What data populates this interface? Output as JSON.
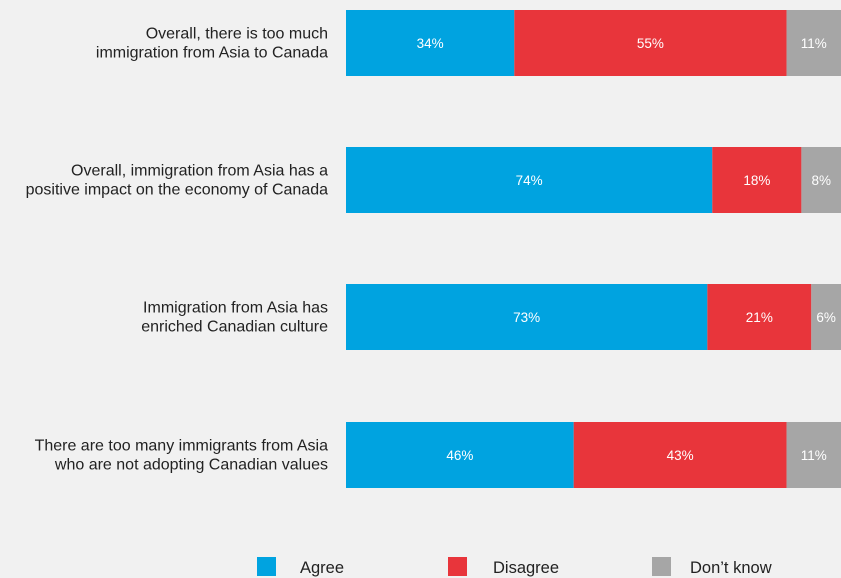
{
  "chart_data": {
    "type": "bar",
    "orientation": "horizontal",
    "stacked": true,
    "categories": [
      [
        "Overall, there is too much",
        "immigration from Asia to Canada"
      ],
      [
        "Overall, immigration from Asia has a",
        "positive impact on the economy of Canada"
      ],
      [
        "Immigration from Asia has",
        "enriched Canadian culture"
      ],
      [
        "There are too many immigrants from Asia",
        "who are not adopting Canadian values"
      ]
    ],
    "series": [
      {
        "name": "Agree",
        "color": "#00a3e0",
        "values": [
          34,
          74,
          73,
          46
        ],
        "labels": [
          "34%",
          "74%",
          "73%",
          "46%"
        ]
      },
      {
        "name": "Disagree",
        "color": "#e8353b",
        "values": [
          55,
          18,
          21,
          43
        ],
        "labels": [
          "55%",
          "18%",
          "21%",
          "43%"
        ]
      },
      {
        "name": "Don’t know",
        "color": "#a6a6a6",
        "values": [
          11,
          8,
          6,
          11
        ],
        "labels": [
          "11%",
          "8%",
          "6%",
          "11%"
        ]
      }
    ],
    "xlim": [
      0,
      100
    ],
    "grid": false,
    "legend": "bottom"
  }
}
